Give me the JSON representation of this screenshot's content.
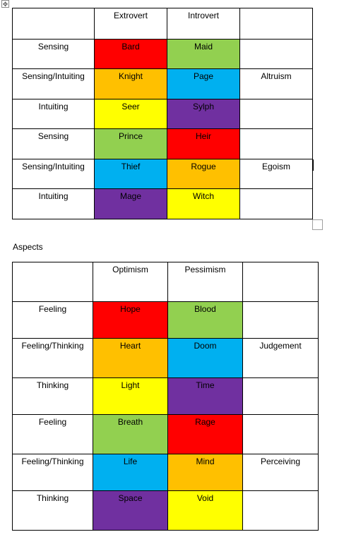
{
  "colors": {
    "red": "#ff0000",
    "orange": "#ffc000",
    "yellow": "#ffff00",
    "green": "#92d050",
    "blue": "#00b0f0",
    "purple": "#7030a0"
  },
  "icons": {
    "move_handle": "four-way-arrow-icon",
    "resize_handle": "resize-square-icon"
  },
  "classes_table": {
    "headers": [
      "",
      "Extrovert",
      "Introvert",
      ""
    ],
    "rows": [
      {
        "label": "Sensing",
        "a": {
          "text": "Bard",
          "color": "red"
        },
        "b": {
          "text": "Maid",
          "color": "green"
        },
        "extra": ""
      },
      {
        "label": "Sensing/Intuiting",
        "a": {
          "text": "Knight",
          "color": "orange"
        },
        "b": {
          "text": "Page",
          "color": "blue"
        },
        "extra": "Altruism"
      },
      {
        "label": "Intuiting",
        "a": {
          "text": "Seer",
          "color": "yellow"
        },
        "b": {
          "text": "Sylph",
          "color": "purple"
        },
        "extra": ""
      },
      {
        "label": "Sensing",
        "a": {
          "text": "Prince",
          "color": "green"
        },
        "b": {
          "text": "Heir",
          "color": "red"
        },
        "extra": ""
      },
      {
        "label": "Sensing/Intuiting",
        "a": {
          "text": "Thief",
          "color": "blue"
        },
        "b": {
          "text": "Rogue",
          "color": "orange"
        },
        "extra": "Egoism"
      },
      {
        "label": "Intuiting",
        "a": {
          "text": "Mage",
          "color": "purple"
        },
        "b": {
          "text": "Witch",
          "color": "yellow"
        },
        "extra": ""
      }
    ]
  },
  "aspects_label": "Aspects",
  "aspects_table": {
    "headers": [
      "",
      "Optimism",
      "Pessimism",
      ""
    ],
    "rows": [
      {
        "label": "Feeling",
        "a": {
          "text": "Hope",
          "color": "red"
        },
        "b": {
          "text": "Blood",
          "color": "green"
        },
        "extra": ""
      },
      {
        "label": "Feeling/Thinking",
        "a": {
          "text": "Heart",
          "color": "orange"
        },
        "b": {
          "text": "Doom",
          "color": "blue"
        },
        "extra": "Judgement"
      },
      {
        "label": "Thinking",
        "a": {
          "text": "Light",
          "color": "yellow"
        },
        "b": {
          "text": "Time",
          "color": "purple"
        },
        "extra": ""
      },
      {
        "label": "Feeling",
        "a": {
          "text": "Breath",
          "color": "green"
        },
        "b": {
          "text": "Rage",
          "color": "red"
        },
        "extra": ""
      },
      {
        "label": "Feeling/Thinking",
        "a": {
          "text": "Life",
          "color": "blue"
        },
        "b": {
          "text": "Mind",
          "color": "orange"
        },
        "extra": "Perceiving"
      },
      {
        "label": "Thinking",
        "a": {
          "text": "Space",
          "color": "purple"
        },
        "b": {
          "text": "Void",
          "color": "yellow"
        },
        "extra": ""
      }
    ]
  }
}
